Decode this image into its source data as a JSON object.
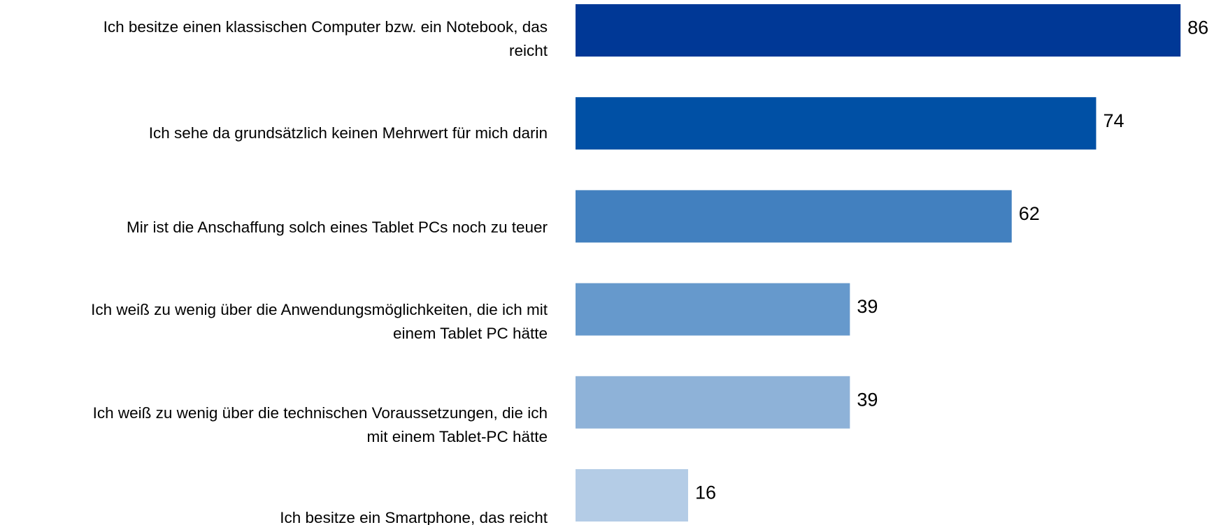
{
  "chart_data": {
    "type": "bar",
    "orientation": "horizontal",
    "categories": [
      "Ich besitze einen klassischen Computer bzw. ein Notebook, das\nreicht",
      "Ich sehe da grundsätzlich keinen Mehrwert für mich darin",
      "Mir ist die Anschaffung solch eines Tablet PCs noch zu teuer",
      "Ich weiß zu wenig über die Anwendungsmöglichkeiten, die ich mit\neinem Tablet PC hätte",
      "Ich weiß zu wenig über die technischen Voraussetzungen, die ich\nmit einem Tablet-PC hätte",
      "Ich besitze ein Smartphone, das reicht"
    ],
    "values": [
      86,
      74,
      62,
      39,
      39,
      16
    ],
    "colors": [
      "#003896",
      "#0050a5",
      "#4280bf",
      "#6699cc",
      "#8eb2d8",
      "#b4cce6"
    ]
  }
}
